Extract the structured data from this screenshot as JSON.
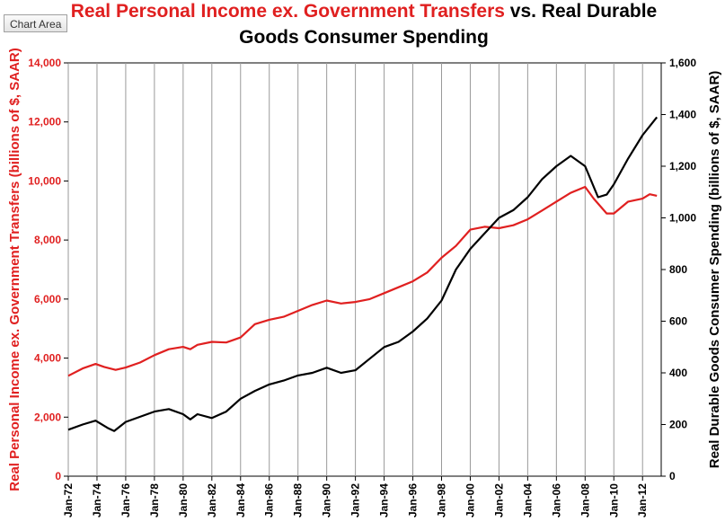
{
  "ui": {
    "chart_area_label": "Chart Area"
  },
  "chart_data": {
    "type": "line",
    "title_part1": "Real Personal Income ex. Government Transfers",
    "title_part2": " vs. Real Durable",
    "title_line2": "Goods Consumer Spending",
    "ylabel_left": "Real Personal Income ex. Government Transfers (billions of $, SAAR)",
    "ylabel_right": "Real Durable Goods Consumer Spending (billions of $, SAAR)",
    "xlabel": "",
    "x_ticks": [
      "Jan-72",
      "Jan-74",
      "Jan-76",
      "Jan-78",
      "Jan-80",
      "Jan-82",
      "Jan-84",
      "Jan-86",
      "Jan-88",
      "Jan-90",
      "Jan-92",
      "Jan-94",
      "Jan-96",
      "Jan-98",
      "Jan-00",
      "Jan-02",
      "Jan-04",
      "Jan-06",
      "Jan-08",
      "Jan-10",
      "Jan-12"
    ],
    "x_range": [
      1972,
      2013.3
    ],
    "ylim_left": [
      0,
      14000
    ],
    "ylim_right": [
      0,
      1600
    ],
    "y_ticks_left": [
      "0",
      "2,000",
      "4,000",
      "6,000",
      "8,000",
      "10,000",
      "12,000",
      "14,000"
    ],
    "y_ticks_right": [
      "0",
      "200",
      "400",
      "600",
      "800",
      "1,000",
      "1,200",
      "1,400",
      "1,600"
    ],
    "grid": "vertical",
    "colors": {
      "income": "#e02020",
      "durables": "#000000",
      "left_axis": "#e02020",
      "right_axis": "#000000"
    },
    "series": [
      {
        "axis": "left",
        "color": "#e02020",
        "points": [
          [
            1972,
            3400
          ],
          [
            1973,
            3650
          ],
          [
            1973.9,
            3800
          ],
          [
            1974.5,
            3700
          ],
          [
            1975.3,
            3600
          ],
          [
            1976,
            3680
          ],
          [
            1977,
            3850
          ],
          [
            1978,
            4100
          ],
          [
            1979,
            4300
          ],
          [
            1980,
            4380
          ],
          [
            1980.5,
            4300
          ],
          [
            1981,
            4450
          ],
          [
            1982,
            4550
          ],
          [
            1983,
            4530
          ],
          [
            1984,
            4700
          ],
          [
            1985,
            5150
          ],
          [
            1986,
            5300
          ],
          [
            1987,
            5400
          ],
          [
            1988,
            5600
          ],
          [
            1989,
            5800
          ],
          [
            1990,
            5950
          ],
          [
            1991,
            5850
          ],
          [
            1992,
            5900
          ],
          [
            1993,
            6000
          ],
          [
            1994,
            6200
          ],
          [
            1995,
            6400
          ],
          [
            1996,
            6600
          ],
          [
            1997,
            6900
          ],
          [
            1998,
            7400
          ],
          [
            1999,
            7800
          ],
          [
            2000,
            8350
          ],
          [
            2001,
            8450
          ],
          [
            2002,
            8400
          ],
          [
            2003,
            8500
          ],
          [
            2004,
            8700
          ],
          [
            2005,
            9000
          ],
          [
            2006,
            9300
          ],
          [
            2007,
            9600
          ],
          [
            2008,
            9800
          ],
          [
            2008.6,
            9400
          ],
          [
            2009.5,
            8900
          ],
          [
            2010,
            8900
          ],
          [
            2011,
            9300
          ],
          [
            2012,
            9400
          ],
          [
            2012.5,
            9550
          ],
          [
            2013,
            9500
          ]
        ]
      },
      {
        "axis": "right",
        "color": "#000000",
        "points": [
          [
            1972,
            180
          ],
          [
            1973,
            200
          ],
          [
            1973.9,
            215
          ],
          [
            1974.8,
            185
          ],
          [
            1975.2,
            175
          ],
          [
            1976,
            210
          ],
          [
            1977,
            230
          ],
          [
            1978,
            250
          ],
          [
            1979,
            260
          ],
          [
            1980,
            240
          ],
          [
            1980.5,
            220
          ],
          [
            1981,
            240
          ],
          [
            1982,
            225
          ],
          [
            1983,
            250
          ],
          [
            1984,
            300
          ],
          [
            1985,
            330
          ],
          [
            1986,
            355
          ],
          [
            1987,
            370
          ],
          [
            1988,
            390
          ],
          [
            1989,
            400
          ],
          [
            1990,
            420
          ],
          [
            1991,
            400
          ],
          [
            1992,
            410
          ],
          [
            1993,
            455
          ],
          [
            1994,
            500
          ],
          [
            1995,
            520
          ],
          [
            1996,
            560
          ],
          [
            1997,
            610
          ],
          [
            1998,
            680
          ],
          [
            1999,
            800
          ],
          [
            2000,
            880
          ],
          [
            2001,
            940
          ],
          [
            2002,
            1000
          ],
          [
            2003,
            1030
          ],
          [
            2004,
            1080
          ],
          [
            2005,
            1150
          ],
          [
            2006,
            1200
          ],
          [
            2007,
            1240
          ],
          [
            2008,
            1200
          ],
          [
            2008.9,
            1080
          ],
          [
            2009.5,
            1090
          ],
          [
            2010,
            1130
          ],
          [
            2011,
            1230
          ],
          [
            2012,
            1320
          ],
          [
            2013,
            1390
          ]
        ]
      }
    ]
  }
}
